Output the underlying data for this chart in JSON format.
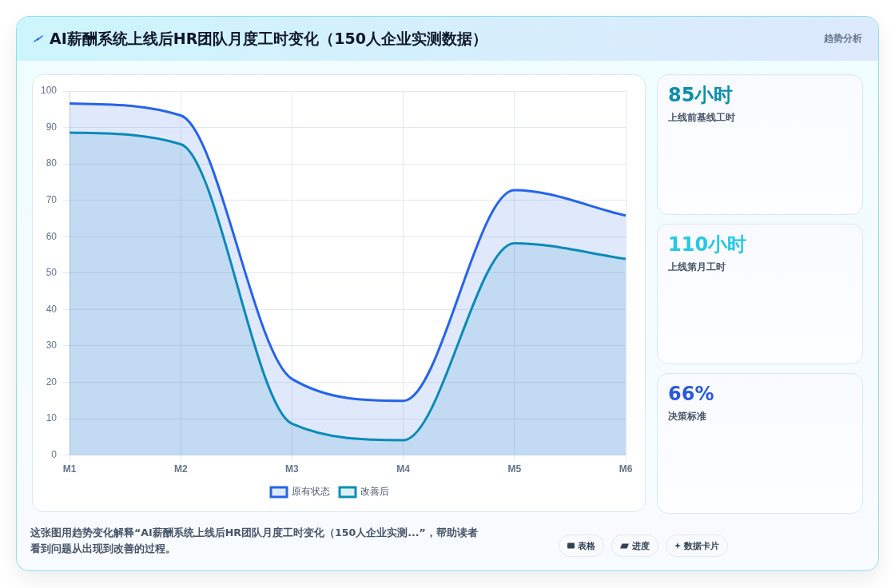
{
  "chart_data": {
    "type": "area",
    "title": "AI薪酬系统上线后HR团队月度工时变化（150人企业实测数据）",
    "subtitle": "趋势分析",
    "categories": [
      "M1",
      "M2",
      "M3",
      "M4",
      "M5",
      "M6"
    ],
    "series": [
      {
        "name": "原有状态",
        "color": "#2563eb",
        "values": [
          96.6,
          93.3,
          20.9,
          14.9,
          72.8,
          65.8
        ]
      },
      {
        "name": "改善后",
        "color": "#0891b2",
        "values": [
          88.6,
          85.4,
          8.6,
          4.1,
          58.2,
          53.9
        ]
      }
    ],
    "ylim": [
      0,
      100
    ],
    "yticks": [
      0,
      10,
      20,
      30,
      40,
      50,
      60,
      70,
      80,
      90,
      100
    ],
    "grid": true,
    "legend": "bottom",
    "marker": "none",
    "annotations": [
      "85小时",
      "上线前基线工时",
      "110小时",
      "上线第月工时",
      "66%",
      "决策标准",
      "这张图用趋势变化解释“AI薪酬系统上线后HR团队月度工时变化（150人企业实测...”，帮助读者看到问题从出现到改善的过程。",
      "表格",
      "进度",
      "数据卡片"
    ]
  }
}
